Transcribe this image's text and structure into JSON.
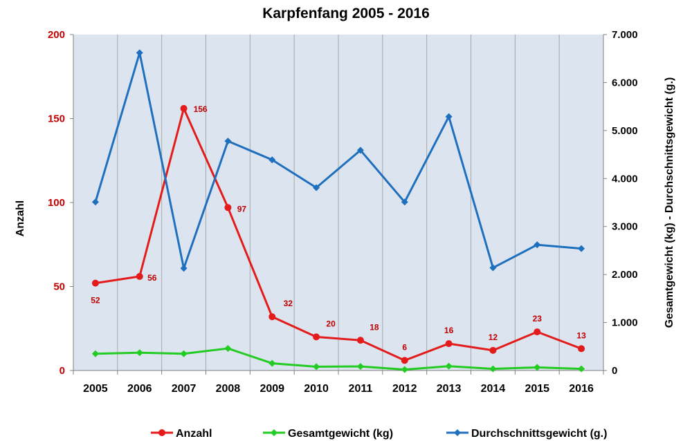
{
  "chart_data": {
    "type": "line",
    "title": "Karpfenfang 2005 - 2016",
    "categories": [
      "2005",
      "2006",
      "2007",
      "2008",
      "2009",
      "2010",
      "2011",
      "2012",
      "2013",
      "2014",
      "2015",
      "2016"
    ],
    "y_left": {
      "label": "Anzahl",
      "ylim": [
        0,
        200
      ],
      "ticks": [
        "0",
        "50",
        "100",
        "150",
        "200"
      ]
    },
    "y_right": {
      "label": "Gesamtgewicht (kg) - Durchschnittsgewicht (g.)",
      "ylim": [
        0,
        7000
      ],
      "ticks": [
        "0",
        "1.000",
        "2.000",
        "3.000",
        "4.000",
        "5.000",
        "6.000",
        "7.000"
      ]
    },
    "grid": "vertical",
    "legend_position": "bottom",
    "series": [
      {
        "name": "Anzahl",
        "axis": "left",
        "color": "#e41b1b",
        "marker": "circle",
        "values": [
          52,
          56,
          156,
          97,
          32,
          20,
          18,
          6,
          16,
          12,
          23,
          13
        ],
        "data_labels": [
          "52",
          "56",
          "156",
          "97",
          "32",
          "20",
          "18",
          "6",
          "16",
          "12",
          "23",
          "13"
        ]
      },
      {
        "name": "Gesamtgewicht (kg)",
        "axis": "right",
        "color": "#22cc22",
        "marker": "diamond",
        "values": [
          350,
          370,
          350,
          460,
          150,
          80,
          85,
          20,
          90,
          35,
          65,
          35
        ]
      },
      {
        "name": "Durchschnittsgewicht (g.)",
        "axis": "right",
        "color": "#1f6fbf",
        "marker": "diamond",
        "values": [
          3510,
          6620,
          2130,
          4780,
          4390,
          3810,
          4590,
          3510,
          5290,
          2140,
          2620,
          2540
        ]
      }
    ]
  }
}
